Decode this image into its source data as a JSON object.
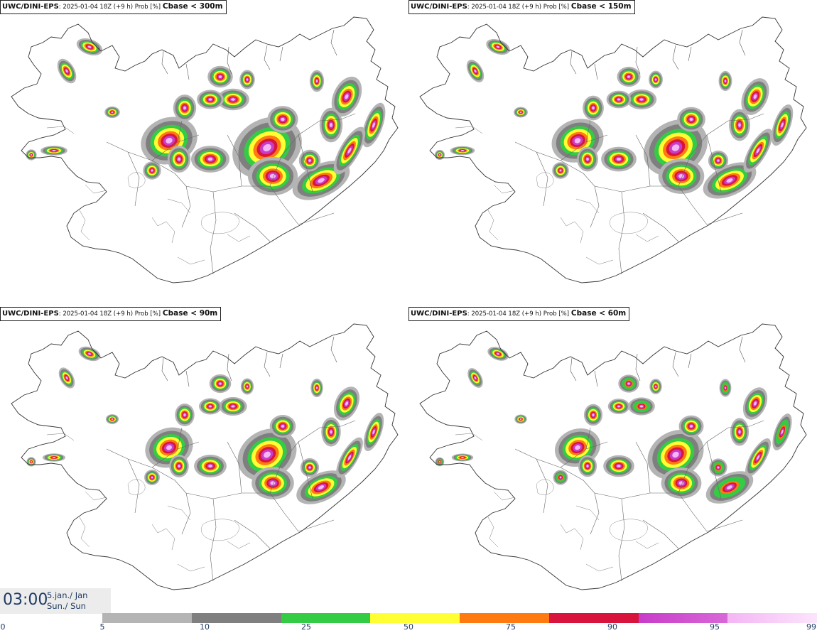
{
  "panels": [
    {
      "model": "UWC/DINI-EPS",
      "run": ": 2025-01-04 18Z (+9 h) Prob [%]",
      "variable": "Cbase < 300m",
      "intensity": 1.0
    },
    {
      "model": "UWC/DINI-EPS",
      "run": ": 2025-01-04 18Z (+9 h) Prob [%]",
      "variable": "Cbase < 150m",
      "intensity": 0.8
    },
    {
      "model": "UWC/DINI-EPS",
      "run": ": 2025-01-04 18Z (+9 h) Prob [%]",
      "variable": "Cbase < 90m",
      "intensity": 0.62
    },
    {
      "model": "UWC/DINI-EPS",
      "run": ": 2025-01-04 18Z (+9 h) Prob [%]",
      "variable": "Cbase < 60m",
      "intensity": 0.52
    }
  ],
  "valid_time": {
    "time": "03:00",
    "date_line1": "5.jan./ Jan",
    "date_line2": "Sun./ Sun"
  },
  "legend": {
    "ticks": [
      "0",
      "5",
      "10",
      "25",
      "50",
      "75",
      "90",
      "95",
      "99"
    ],
    "colors": [
      "#b4b4b4",
      "#7f7f7f",
      "#33cc44",
      "#ffff33",
      "#ff7a10",
      "#d8143c",
      "#c83cc8",
      "#f4b6f4"
    ],
    "colors_gradient_end": [
      "#b4b4b4",
      "#7f7f7f",
      "#33cc44",
      "#ffff33",
      "#ff7a10",
      "#d8143c",
      "#d868d8",
      "#fce4fc"
    ]
  }
}
